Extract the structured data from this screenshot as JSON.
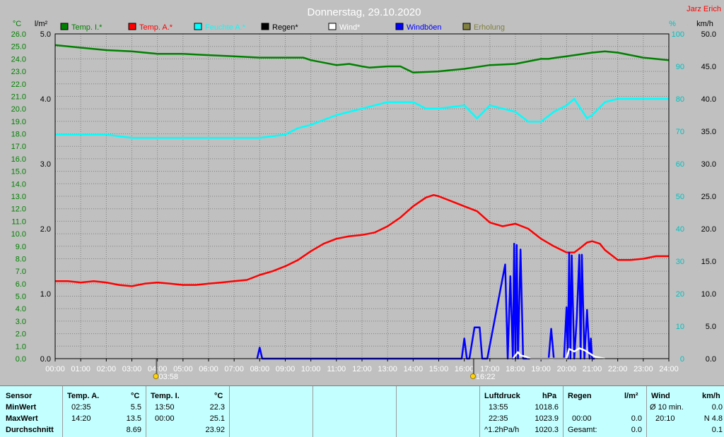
{
  "chart_data": {
    "type": "line",
    "title": "Donnerstag, 29.10.2020",
    "corner_label": "Jarz Erich",
    "axis_left_temp": {
      "unit": "°C",
      "min": 0,
      "max": 26,
      "step": 1,
      "color": "#008000"
    },
    "axis_left_rain": {
      "unit": "l/m²",
      "min": 0,
      "max": 5,
      "ticks": [
        "0.0",
        "1.0",
        "2.0",
        "3.0",
        "4.0",
        "5.0"
      ]
    },
    "axis_right_humidity": {
      "unit": "%",
      "min": 0,
      "max": 100,
      "step": 10,
      "color": "#00c0c0"
    },
    "axis_right_wind": {
      "unit": "km/h",
      "min": 0,
      "max": 50,
      "step": 5
    },
    "x_ticks": [
      "00:00",
      "01:00",
      "02:00",
      "03:00",
      "04:00",
      "05:00",
      "06:00",
      "07:00",
      "08:00",
      "09:00",
      "10:00",
      "11:00",
      "12:00",
      "13:00",
      "14:00",
      "15:00",
      "16:00",
      "17:00",
      "18:00",
      "19:00",
      "20:00",
      "21:00",
      "22:00",
      "23:00",
      "24:00"
    ],
    "sunrise": "03:58",
    "sunset": "16:22",
    "legend": [
      {
        "name": "Temp. I.*",
        "color": "#008000"
      },
      {
        "name": "Temp. A.*",
        "color": "#ff0000"
      },
      {
        "name": "Feuchte A.*",
        "color": "#00ffff"
      },
      {
        "name": "Regen*",
        "color": "#000000"
      },
      {
        "name": "Wind*",
        "color": "#ffffff"
      },
      {
        "name": "Windböen",
        "color": "#0000ff"
      },
      {
        "name": "Erholung",
        "color": "#808040"
      }
    ],
    "series": [
      {
        "name": "Temp. I.*",
        "axis": "temp",
        "color": "#008000",
        "x": [
          0,
          1,
          2,
          3,
          4,
          5,
          6,
          7,
          8,
          9,
          9.7,
          10,
          11,
          11.5,
          12,
          12.3,
          13,
          13.5,
          14,
          15,
          16,
          17,
          18,
          19,
          19.3,
          19.6,
          20,
          21,
          21.5,
          22,
          23,
          24
        ],
        "y": [
          25.1,
          24.9,
          24.7,
          24.6,
          24.4,
          24.4,
          24.3,
          24.2,
          24.1,
          24.1,
          24.1,
          23.9,
          23.5,
          23.6,
          23.4,
          23.3,
          23.4,
          23.4,
          22.9,
          23.0,
          23.2,
          23.5,
          23.6,
          24.0,
          24.0,
          24.1,
          24.2,
          24.5,
          24.6,
          24.5,
          24.1,
          23.9
        ]
      },
      {
        "name": "Temp. A.*",
        "axis": "temp",
        "color": "#ff0000",
        "x": [
          0,
          0.5,
          1,
          1.5,
          2,
          2.5,
          3,
          3.5,
          4,
          4.5,
          5,
          5.5,
          6,
          6.5,
          7,
          7.5,
          8,
          8.5,
          9,
          9.5,
          10,
          10.5,
          11,
          11.5,
          12,
          12.5,
          13,
          13.5,
          14,
          14.5,
          14.8,
          15,
          15.5,
          16,
          16.5,
          17,
          17.5,
          18,
          18.5,
          19,
          19.5,
          20,
          20.3,
          20.5,
          20.8,
          21,
          21.3,
          21.5,
          22,
          22.5,
          23,
          23.5,
          24
        ],
        "y": [
          6.2,
          6.2,
          6.1,
          6.2,
          6.1,
          5.9,
          5.8,
          6.0,
          6.1,
          6.0,
          5.9,
          5.9,
          6.0,
          6.1,
          6.2,
          6.3,
          6.7,
          7.0,
          7.4,
          7.9,
          8.6,
          9.2,
          9.6,
          9.8,
          9.9,
          10.1,
          10.6,
          11.3,
          12.2,
          12.9,
          13.1,
          13.0,
          12.6,
          12.2,
          11.8,
          10.9,
          10.6,
          10.8,
          10.4,
          9.6,
          9.0,
          8.5,
          8.5,
          8.8,
          9.3,
          9.4,
          9.2,
          8.7,
          7.9,
          7.9,
          8.0,
          8.2,
          8.2
        ]
      },
      {
        "name": "Feuchte A.*",
        "axis": "humidity",
        "color": "#00ffff",
        "x": [
          0,
          1,
          2,
          3,
          4,
          5,
          6,
          7,
          8,
          9,
          9.5,
          10,
          11,
          12,
          13,
          14,
          14.5,
          15,
          16,
          16.5,
          17,
          17.5,
          18,
          18.5,
          19,
          19.5,
          20,
          20.3,
          20.8,
          21,
          21.5,
          22,
          23,
          24
        ],
        "y": [
          69,
          69,
          69,
          68,
          68,
          68,
          68,
          68,
          68,
          69,
          71,
          72,
          75,
          77,
          79,
          79,
          77,
          77,
          78,
          74,
          78,
          77,
          76,
          73,
          73,
          76,
          78,
          80,
          74,
          75,
          79,
          80,
          80,
          80
        ]
      },
      {
        "name": "Windböen",
        "axis": "wind",
        "color": "#0000ff",
        "x": [
          7.9,
          8.0,
          8.1,
          15.9,
          16.0,
          16.1,
          16.2,
          16.4,
          16.6,
          16.7,
          16.9,
          17.6,
          17.7,
          17.8,
          17.9,
          17.95,
          18.0,
          18.05,
          18.1,
          18.2,
          18.3,
          19.3,
          19.4,
          19.5,
          19.9,
          20.0,
          20.05,
          20.1,
          20.15,
          20.2,
          20.3,
          20.4,
          20.5,
          20.55,
          20.6,
          20.7,
          20.8,
          20.9,
          20.95,
          21.0,
          21.1
        ],
        "y": [
          0,
          1.7,
          0,
          0,
          3.1,
          0,
          0,
          4.8,
          4.8,
          0,
          0,
          14.5,
          0,
          12.7,
          0,
          17.7,
          0,
          17.5,
          0,
          16.8,
          0,
          0,
          4.6,
          0,
          0,
          7.9,
          0,
          16.3,
          0,
          15.9,
          0,
          6.3,
          16.0,
          0,
          16.0,
          0,
          7.5,
          0,
          3.1,
          0,
          0
        ]
      },
      {
        "name": "Wind*",
        "axis": "wind",
        "color": "#ffffff",
        "x": [
          17.9,
          18.0,
          18.1,
          18.2,
          18.4,
          18.6,
          20.0,
          20.1,
          20.3,
          20.5,
          20.7,
          20.9,
          21.1,
          21.5
        ],
        "y": [
          0,
          0.5,
          1.0,
          0.5,
          0.3,
          0,
          0,
          1.5,
          1.1,
          1.6,
          1.3,
          0.8,
          0.3,
          0
        ]
      }
    ]
  },
  "panel": {
    "sensor": {
      "header": "Sensor",
      "rows": [
        "MinWert",
        "MaxWert",
        "Durchschnitt"
      ]
    },
    "temp_a": {
      "header": "Temp. A.",
      "unit": "°C",
      "min_time": "02:35",
      "min_val": "5.5",
      "max_time": "14:20",
      "max_val": "13.5",
      "avg": "8.69"
    },
    "temp_i": {
      "header": "Temp. I.",
      "unit": "°C",
      "min_time": "13:50",
      "min_val": "22.3",
      "max_time": "00:00",
      "max_val": "25.1",
      "avg": "23.92"
    },
    "pressure": {
      "header": "Luftdruck",
      "unit": "hPa",
      "min_time": "13:55",
      "min_val": "1018.6",
      "max_time": "22:35",
      "max_val": "1023.9",
      "trend": "^1.2hPa/h",
      "avg": "1020.3"
    },
    "rain": {
      "header": "Regen",
      "unit": "l/m²",
      "max_time": "00:00",
      "max_val": "0.0",
      "total_label": "Gesamt:",
      "total": "0.0"
    },
    "wind": {
      "header": "Wind",
      "unit": "km/h",
      "row1_label": "Ø 10 min.",
      "row1_val": "0.0",
      "row2_time": "20:10",
      "row2_val": "N 4.8",
      "avg": "0.1"
    }
  }
}
